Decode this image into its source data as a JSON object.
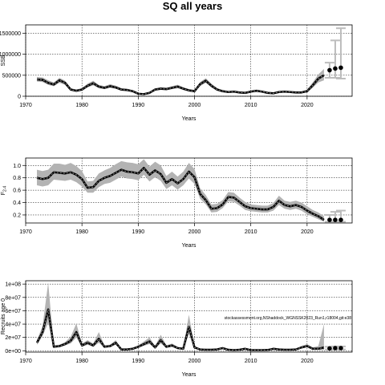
{
  "title": "SQ all years",
  "chart_data": [
    {
      "type": "line",
      "name": "ssb",
      "xlabel": "Years",
      "ylabel": "SSB",
      "xlim": [
        1970,
        2028
      ],
      "ylim": [
        0,
        1700000
      ],
      "xticks": [
        1970,
        1980,
        1990,
        2000,
        2010,
        2020
      ],
      "yticks": [
        0,
        500000,
        1000000,
        1500000
      ],
      "ytick_labels": [
        "0",
        "500000",
        "1000000",
        "1500000"
      ],
      "grid": true,
      "x": [
        1972,
        1973,
        1974,
        1975,
        1976,
        1977,
        1978,
        1979,
        1980,
        1981,
        1982,
        1983,
        1984,
        1985,
        1986,
        1987,
        1988,
        1989,
        1990,
        1991,
        1992,
        1993,
        1994,
        1995,
        1996,
        1997,
        1998,
        1999,
        2000,
        2001,
        2002,
        2003,
        2004,
        2005,
        2006,
        2007,
        2008,
        2009,
        2010,
        2011,
        2012,
        2013,
        2014,
        2015,
        2016,
        2017,
        2018,
        2019,
        2020,
        2021,
        2022,
        2023
      ],
      "y": [
        400000,
        390000,
        320000,
        280000,
        380000,
        320000,
        160000,
        130000,
        160000,
        250000,
        310000,
        230000,
        200000,
        240000,
        210000,
        160000,
        150000,
        120000,
        60000,
        50000,
        80000,
        160000,
        180000,
        170000,
        200000,
        230000,
        180000,
        140000,
        120000,
        290000,
        370000,
        250000,
        160000,
        120000,
        100000,
        110000,
        90000,
        80000,
        110000,
        130000,
        110000,
        80000,
        70000,
        100000,
        110000,
        100000,
        90000,
        90000,
        120000,
        260000,
        420000,
        500000
      ],
      "lower": [
        350000,
        340000,
        270000,
        240000,
        320000,
        270000,
        130000,
        110000,
        130000,
        210000,
        260000,
        190000,
        170000,
        200000,
        180000,
        130000,
        120000,
        100000,
        45000,
        40000,
        65000,
        130000,
        150000,
        140000,
        170000,
        190000,
        150000,
        115000,
        100000,
        240000,
        320000,
        210000,
        135000,
        100000,
        85000,
        90000,
        75000,
        65000,
        90000,
        110000,
        90000,
        65000,
        55000,
        80000,
        90000,
        80000,
        70000,
        70000,
        90000,
        200000,
        330000,
        380000
      ],
      "upper": [
        460000,
        450000,
        380000,
        330000,
        440000,
        370000,
        190000,
        160000,
        190000,
        300000,
        370000,
        270000,
        240000,
        290000,
        250000,
        190000,
        180000,
        145000,
        75000,
        62000,
        100000,
        190000,
        215000,
        205000,
        240000,
        275000,
        215000,
        170000,
        150000,
        340000,
        430000,
        300000,
        195000,
        145000,
        120000,
        135000,
        110000,
        100000,
        135000,
        155000,
        135000,
        100000,
        90000,
        125000,
        135000,
        125000,
        115000,
        115000,
        160000,
        330000,
        520000,
        650000
      ],
      "projection": {
        "x": [
          2024,
          2025,
          2026
        ],
        "y": [
          620000,
          660000,
          680000
        ],
        "lower": [
          440000,
          440000,
          420000
        ],
        "upper": [
          800000,
          1330000,
          1620000
        ]
      }
    },
    {
      "type": "line",
      "name": "f",
      "xlabel": "Years",
      "ylabel": "F2-4",
      "xlim": [
        1970,
        2028
      ],
      "ylim": [
        0.07,
        1.12
      ],
      "xticks": [
        1970,
        1980,
        1990,
        2000,
        2010,
        2020
      ],
      "yticks": [
        0.2,
        0.4,
        0.6,
        0.8,
        1.0
      ],
      "ytick_labels": [
        "0.2",
        "0.4",
        "0.6",
        "0.8",
        "1.0"
      ],
      "grid": true,
      "x": [
        1972,
        1973,
        1974,
        1975,
        1976,
        1977,
        1978,
        1979,
        1980,
        1981,
        1982,
        1983,
        1984,
        1985,
        1986,
        1987,
        1988,
        1989,
        1990,
        1991,
        1992,
        1993,
        1994,
        1995,
        1996,
        1997,
        1998,
        1999,
        2000,
        2001,
        2002,
        2003,
        2004,
        2005,
        2006,
        2007,
        2008,
        2009,
        2010,
        2011,
        2012,
        2013,
        2014,
        2015,
        2016,
        2017,
        2018,
        2019,
        2020,
        2021,
        2022,
        2023
      ],
      "y": [
        0.8,
        0.78,
        0.8,
        0.89,
        0.88,
        0.87,
        0.89,
        0.85,
        0.78,
        0.64,
        0.65,
        0.75,
        0.8,
        0.83,
        0.88,
        0.93,
        0.9,
        0.89,
        0.87,
        0.96,
        0.85,
        0.92,
        0.86,
        0.72,
        0.78,
        0.71,
        0.78,
        0.9,
        0.81,
        0.54,
        0.44,
        0.3,
        0.31,
        0.37,
        0.49,
        0.48,
        0.41,
        0.34,
        0.31,
        0.3,
        0.29,
        0.29,
        0.33,
        0.43,
        0.36,
        0.34,
        0.36,
        0.33,
        0.27,
        0.22,
        0.18,
        0.12
      ],
      "lower": [
        0.68,
        0.66,
        0.68,
        0.77,
        0.76,
        0.75,
        0.77,
        0.73,
        0.66,
        0.56,
        0.56,
        0.65,
        0.7,
        0.72,
        0.77,
        0.82,
        0.79,
        0.78,
        0.76,
        0.85,
        0.74,
        0.81,
        0.75,
        0.62,
        0.68,
        0.61,
        0.68,
        0.79,
        0.7,
        0.46,
        0.37,
        0.24,
        0.25,
        0.31,
        0.42,
        0.41,
        0.35,
        0.28,
        0.26,
        0.25,
        0.24,
        0.24,
        0.27,
        0.36,
        0.3,
        0.28,
        0.3,
        0.27,
        0.21,
        0.17,
        0.13,
        0.09
      ],
      "upper": [
        0.93,
        0.91,
        0.93,
        1.03,
        1.03,
        1.01,
        1.04,
        0.99,
        0.91,
        0.74,
        0.75,
        0.87,
        0.92,
        0.96,
        1.02,
        1.07,
        1.05,
        1.04,
        1.02,
        1.1,
        0.98,
        1.06,
        1.0,
        0.83,
        0.9,
        0.82,
        0.9,
        1.04,
        0.94,
        0.63,
        0.52,
        0.37,
        0.38,
        0.44,
        0.57,
        0.56,
        0.48,
        0.41,
        0.37,
        0.36,
        0.35,
        0.35,
        0.39,
        0.51,
        0.43,
        0.41,
        0.43,
        0.4,
        0.34,
        0.28,
        0.24,
        0.18
      ],
      "projection": {
        "x": [
          2024,
          2025,
          2026
        ],
        "y": [
          0.12,
          0.12,
          0.12
        ],
        "lower": [
          0.09,
          0.09,
          0.09
        ],
        "upper": [
          0.2,
          0.25,
          0.27
        ]
      }
    },
    {
      "type": "line",
      "name": "rec",
      "xlabel": "Years",
      "ylabel": "Recruits age 0",
      "xlim": [
        1970,
        2028
      ],
      "ylim": [
        -2000000,
        105000000
      ],
      "xticks": [
        1970,
        1980,
        1990,
        2000,
        2010,
        2020
      ],
      "yticks": [
        0,
        20000000,
        40000000,
        60000000,
        80000000,
        100000000
      ],
      "ytick_labels": [
        "0e+00",
        "2e+07",
        "4e+07",
        "6e+07",
        "8e+07",
        "1e+08"
      ],
      "grid": true,
      "annotation": "stockassessment.org,NShaddock_WGNSSK2023_Run1,r18004,git:e38",
      "x": [
        1972,
        1973,
        1974,
        1975,
        1976,
        1977,
        1978,
        1979,
        1980,
        1981,
        1982,
        1983,
        1984,
        1985,
        1986,
        1987,
        1988,
        1989,
        1990,
        1991,
        1992,
        1993,
        1994,
        1995,
        1996,
        1997,
        1998,
        1999,
        2000,
        2001,
        2002,
        2003,
        2004,
        2005,
        2006,
        2007,
        2008,
        2009,
        2010,
        2011,
        2012,
        2013,
        2014,
        2015,
        2016,
        2017,
        2018,
        2019,
        2020,
        2021,
        2022,
        2023
      ],
      "y": [
        12000000,
        28000000,
        62000000,
        6000000,
        7000000,
        10000000,
        15000000,
        28000000,
        8000000,
        12000000,
        8000000,
        18000000,
        6000000,
        7000000,
        12000000,
        2000000,
        2000000,
        3000000,
        6000000,
        10000000,
        14000000,
        5000000,
        16000000,
        6000000,
        8000000,
        4000000,
        3000000,
        36000000,
        5000000,
        2000000,
        1500000,
        1500000,
        2000000,
        4000000,
        1500000,
        1000000,
        1500000,
        3000000,
        1000000,
        1000000,
        1000000,
        1200000,
        3000000,
        2000000,
        1500000,
        1500000,
        2000000,
        5000000,
        7000000,
        3000000,
        3000000,
        5000000
      ],
      "lower": [
        9000000,
        22000000,
        42000000,
        4500000,
        5500000,
        8000000,
        11000000,
        20000000,
        6000000,
        9000000,
        6000000,
        12000000,
        4500000,
        5500000,
        9000000,
        1500000,
        1500000,
        2200000,
        4500000,
        7500000,
        10000000,
        3800000,
        11000000,
        4500000,
        6000000,
        3000000,
        2200000,
        25000000,
        3500000,
        1400000,
        1000000,
        1000000,
        1400000,
        3000000,
        1000000,
        700000,
        1000000,
        2200000,
        700000,
        700000,
        700000,
        900000,
        2200000,
        1400000,
        1000000,
        1000000,
        1400000,
        3500000,
        5000000,
        2000000,
        1500000,
        1000000
      ],
      "upper": [
        16000000,
        37000000,
        102000000,
        8000000,
        9000000,
        13000000,
        21000000,
        41000000,
        11000000,
        16000000,
        11000000,
        28000000,
        8000000,
        9000000,
        16000000,
        3000000,
        3000000,
        4200000,
        8000000,
        14000000,
        20000000,
        7000000,
        24000000,
        8000000,
        11000000,
        6000000,
        4000000,
        54000000,
        7500000,
        3000000,
        2200000,
        2200000,
        3000000,
        5500000,
        2200000,
        1500000,
        2200000,
        4200000,
        1500000,
        1500000,
        1500000,
        1800000,
        4200000,
        3000000,
        2200000,
        2200000,
        3000000,
        7000000,
        10000000,
        5000000,
        7000000,
        40000000
      ],
      "projection": {
        "x": [
          2024,
          2025,
          2026
        ],
        "y": [
          3500000,
          4000000,
          4000000
        ],
        "lower": [
          2000000,
          2000000,
          2000000
        ],
        "upper": [
          6000000,
          6500000,
          6500000
        ]
      }
    }
  ]
}
